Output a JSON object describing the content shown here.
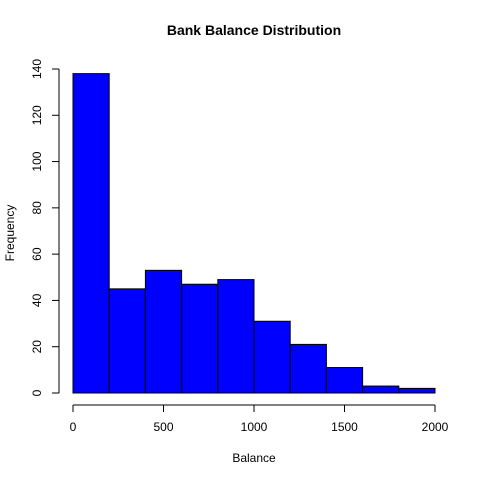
{
  "chart_data": {
    "type": "bar",
    "title": "Bank Balance Distribution",
    "xlabel": "Balance",
    "ylabel": "Frequency",
    "bin_edges": [
      0,
      200,
      400,
      600,
      800,
      1000,
      1200,
      1400,
      1600,
      1800,
      2000
    ],
    "values": [
      138,
      45,
      53,
      47,
      49,
      31,
      21,
      11,
      3,
      2
    ],
    "xlim": [
      0,
      2000
    ],
    "ylim": [
      0,
      140
    ],
    "x_ticks": [
      0,
      500,
      1000,
      1500,
      2000
    ],
    "y_ticks": [
      0,
      20,
      40,
      60,
      80,
      100,
      120,
      140
    ],
    "bar_color": "#0000ff",
    "grid": false,
    "legend": "none"
  }
}
